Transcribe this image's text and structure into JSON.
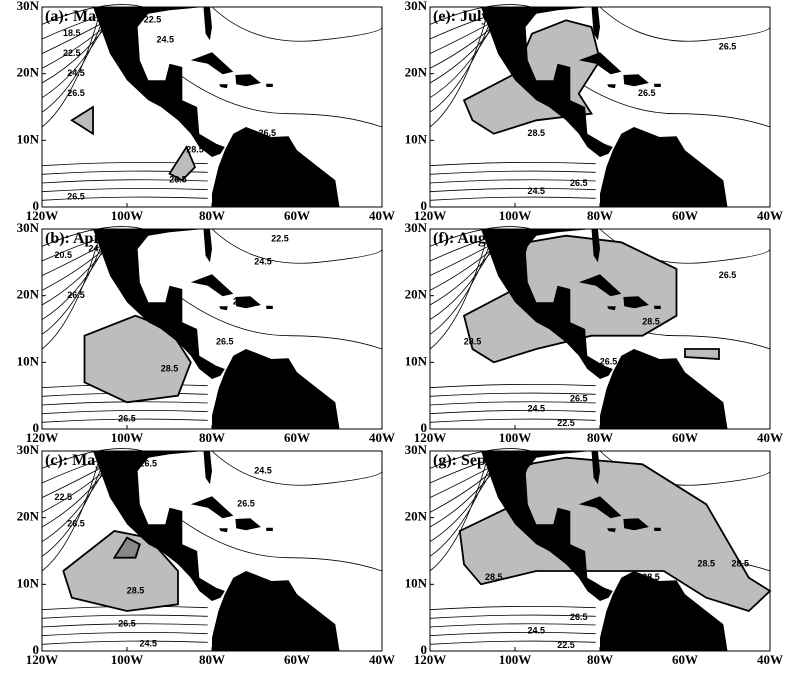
{
  "panels": [
    {
      "title": "(a): March",
      "contour_labels": [
        "18.5",
        "22.5",
        "22.5",
        "24.5",
        "24.5",
        "26.5",
        "26.5",
        "28.5",
        "26.5",
        "26.5"
      ]
    },
    {
      "title": "(b): April",
      "contour_labels": [
        "20.5",
        "24.5",
        "22.5",
        "24.5",
        "26.5",
        "26.5",
        "26.5",
        "28.5",
        "26.5"
      ]
    },
    {
      "title": "(c): May",
      "contour_labels": [
        "22.5",
        "26.5",
        "24.5",
        "26.5",
        "26.5",
        "28.5",
        "26.5",
        "24.5"
      ]
    },
    {
      "title": "(e): July",
      "contour_labels": [
        "26.5",
        "28.5",
        "26.5",
        "26.5",
        "24.5"
      ]
    },
    {
      "title": "(f): August",
      "contour_labels": [
        "26.5",
        "28.5",
        "28.5",
        "26.5",
        "26.5",
        "24.5",
        "22.5"
      ]
    },
    {
      "title": "(g): September",
      "contour_labels": [
        "28.5",
        "28.5",
        "28.5",
        "28.5",
        "26.5",
        "24.5",
        "22.5"
      ]
    }
  ],
  "x_ticks": [
    "120W",
    "100W",
    "80W",
    "60W",
    "40W"
  ],
  "y_ticks": [
    "0",
    "10N",
    "20N",
    "30N"
  ]
}
